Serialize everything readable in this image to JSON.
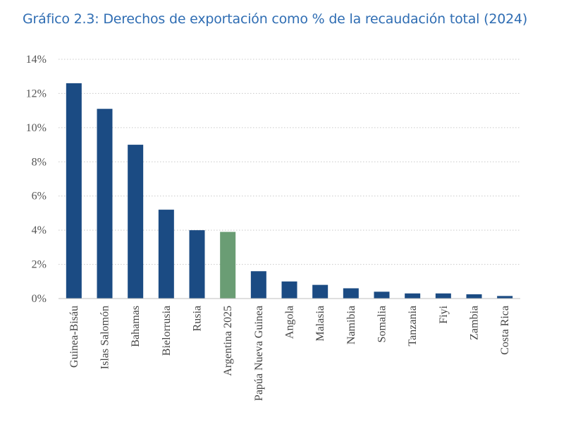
{
  "chart_data": {
    "type": "bar",
    "title": "Gráfico 2.3: Derechos de exportación como % de la recaudación total (2024)",
    "categories": [
      "Guinea-Bisáu",
      "Islas Salomón",
      "Bahamas",
      "Bielorrusia",
      "Rusia",
      "Argentina 2025",
      "Papúa Nueva Guinea",
      "Angola",
      "Malasia",
      "Namibia",
      "Somalia",
      "Tanzania",
      "Fiyi",
      "Zambia",
      "Costa Rica"
    ],
    "values": [
      12.6,
      11.1,
      9.0,
      5.2,
      4.0,
      3.9,
      1.6,
      1.0,
      0.8,
      0.6,
      0.4,
      0.3,
      0.3,
      0.25,
      0.15
    ],
    "value_unit": "%",
    "ylim": [
      0,
      14
    ],
    "yticks": [
      0,
      2,
      4,
      6,
      8,
      10,
      12,
      14
    ],
    "ytick_labels": [
      "0%",
      "2%",
      "4%",
      "6%",
      "8%",
      "10%",
      "12%",
      "14%"
    ],
    "grid": "horizontal-dotted",
    "legend": "none",
    "colors": {
      "default": "#1b4b83",
      "highlight": "#6a9d74",
      "highlight_category": "Argentina 2025",
      "grid": "#c9c9c9"
    }
  }
}
